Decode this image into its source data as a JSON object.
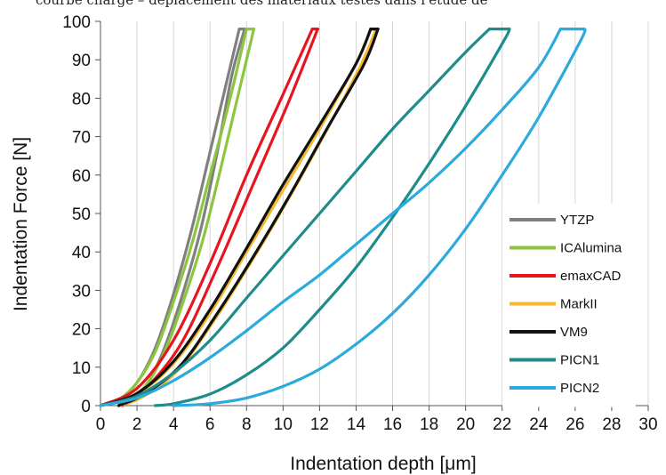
{
  "caption_fragment": "courbe charge – déplacement des matériaux testés dans l'étude de",
  "chart_data": {
    "type": "line",
    "title": "",
    "xlabel": "Indentation depth [μm]",
    "ylabel": "Indentation Force [N]",
    "xlim": [
      0,
      30
    ],
    "ylim": [
      0,
      100
    ],
    "xticks": [
      0,
      2,
      4,
      6,
      8,
      10,
      12,
      14,
      16,
      18,
      20,
      22,
      24,
      26,
      28,
      30
    ],
    "yticks": [
      0,
      10,
      20,
      30,
      40,
      50,
      60,
      70,
      80,
      90,
      100
    ],
    "grid": "vertical",
    "legend_position": "bottom-right",
    "series": [
      {
        "name": "YTZP",
        "color": "#808080",
        "loading": [
          [
            0,
            0
          ],
          [
            1,
            1.5
          ],
          [
            2,
            6
          ],
          [
            3,
            15
          ],
          [
            4,
            29
          ],
          [
            5,
            46
          ],
          [
            6,
            66
          ],
          [
            7,
            86
          ],
          [
            7.6,
            98
          ]
        ],
        "unloading": [
          [
            7.9,
            98
          ],
          [
            7.2,
            86
          ],
          [
            6.4,
            66
          ],
          [
            5.5,
            46
          ],
          [
            4.5,
            29
          ],
          [
            3.5,
            15
          ],
          [
            2.6,
            6
          ],
          [
            1.6,
            1.5
          ],
          [
            1,
            0
          ]
        ]
      },
      {
        "name": "ICAlumina",
        "color": "#8CC63F",
        "loading": [
          [
            0,
            0
          ],
          [
            1,
            1.5
          ],
          [
            2,
            6
          ],
          [
            3,
            14
          ],
          [
            4,
            27
          ],
          [
            5,
            42
          ],
          [
            6,
            60
          ],
          [
            7,
            78
          ],
          [
            8,
            98
          ]
        ],
        "unloading": [
          [
            8.4,
            98
          ],
          [
            7.5,
            80
          ],
          [
            6.6,
            62
          ],
          [
            5.6,
            43
          ],
          [
            4.6,
            28
          ],
          [
            3.6,
            15
          ],
          [
            2.6,
            6
          ],
          [
            1.6,
            1.5
          ],
          [
            1,
            0
          ]
        ]
      },
      {
        "name": "emaxCAD",
        "color": "#E8141E",
        "loading": [
          [
            0,
            0
          ],
          [
            2,
            4.5
          ],
          [
            4,
            17
          ],
          [
            6,
            37
          ],
          [
            8,
            60
          ],
          [
            10,
            81
          ],
          [
            11.6,
            98
          ]
        ],
        "unloading": [
          [
            11.9,
            98
          ],
          [
            10.3,
            79
          ],
          [
            8.4,
            58
          ],
          [
            6.4,
            36
          ],
          [
            4.4,
            16
          ],
          [
            2.4,
            4
          ],
          [
            1.2,
            0
          ]
        ]
      },
      {
        "name": "MarkII",
        "color": "#F5B82E",
        "loading": [
          [
            0,
            0
          ],
          [
            2,
            3
          ],
          [
            4,
            11
          ],
          [
            6,
            24
          ],
          [
            8,
            40
          ],
          [
            10,
            56
          ],
          [
            12,
            72
          ],
          [
            14,
            89
          ],
          [
            14.8,
            98
          ]
        ],
        "unloading": [
          [
            15.1,
            98
          ],
          [
            14.2,
            88
          ],
          [
            12.2,
            70
          ],
          [
            10.2,
            53
          ],
          [
            8.2,
            37
          ],
          [
            6.2,
            22
          ],
          [
            4.2,
            9
          ],
          [
            2.2,
            2
          ],
          [
            1,
            0
          ]
        ]
      },
      {
        "name": "VM9",
        "color": "#111111",
        "loading": [
          [
            0,
            0
          ],
          [
            2,
            3.2
          ],
          [
            4,
            11.5
          ],
          [
            6,
            25
          ],
          [
            8,
            41
          ],
          [
            10,
            57.5
          ],
          [
            12,
            73
          ],
          [
            14,
            89
          ],
          [
            14.8,
            98
          ]
        ],
        "unloading": [
          [
            15.2,
            98
          ],
          [
            14.4,
            88.5
          ],
          [
            12.4,
            72
          ],
          [
            10.4,
            55
          ],
          [
            8.4,
            39
          ],
          [
            6.4,
            24
          ],
          [
            4.4,
            10.5
          ],
          [
            2.4,
            3
          ],
          [
            1,
            0
          ]
        ]
      },
      {
        "name": "PICN1",
        "color": "#1F8C8C",
        "loading": [
          [
            0,
            0
          ],
          [
            2,
            2.5
          ],
          [
            4,
            8.5
          ],
          [
            6,
            17
          ],
          [
            8,
            28
          ],
          [
            10,
            39
          ],
          [
            12,
            50
          ],
          [
            14,
            61
          ],
          [
            16,
            72
          ],
          [
            18,
            82
          ],
          [
            20,
            92
          ],
          [
            21.3,
            98
          ]
        ],
        "unloading": [
          [
            22.4,
            98
          ],
          [
            22.1,
            95
          ],
          [
            20,
            78
          ],
          [
            18,
            63
          ],
          [
            16,
            49
          ],
          [
            14,
            36
          ],
          [
            12,
            25
          ],
          [
            10,
            15
          ],
          [
            8,
            8
          ],
          [
            6,
            3
          ],
          [
            4,
            0.5
          ],
          [
            3,
            0
          ]
        ]
      },
      {
        "name": "PICN2",
        "color": "#2BAADC",
        "loading": [
          [
            0,
            0
          ],
          [
            2,
            2
          ],
          [
            4,
            6.5
          ],
          [
            6,
            12.5
          ],
          [
            8,
            19.5
          ],
          [
            10,
            27
          ],
          [
            12,
            34
          ],
          [
            14,
            42
          ],
          [
            16,
            50
          ],
          [
            18,
            58
          ],
          [
            20,
            67
          ],
          [
            22,
            77
          ],
          [
            24,
            88
          ],
          [
            25.2,
            98
          ]
        ],
        "unloading": [
          [
            26.5,
            98
          ],
          [
            26.3,
            95
          ],
          [
            24,
            75
          ],
          [
            22,
            60
          ],
          [
            20,
            46
          ],
          [
            18,
            34
          ],
          [
            16,
            24
          ],
          [
            14,
            16
          ],
          [
            12,
            9.5
          ],
          [
            10,
            5
          ],
          [
            8,
            2
          ],
          [
            6,
            0.5
          ],
          [
            4,
            0
          ]
        ]
      }
    ]
  }
}
